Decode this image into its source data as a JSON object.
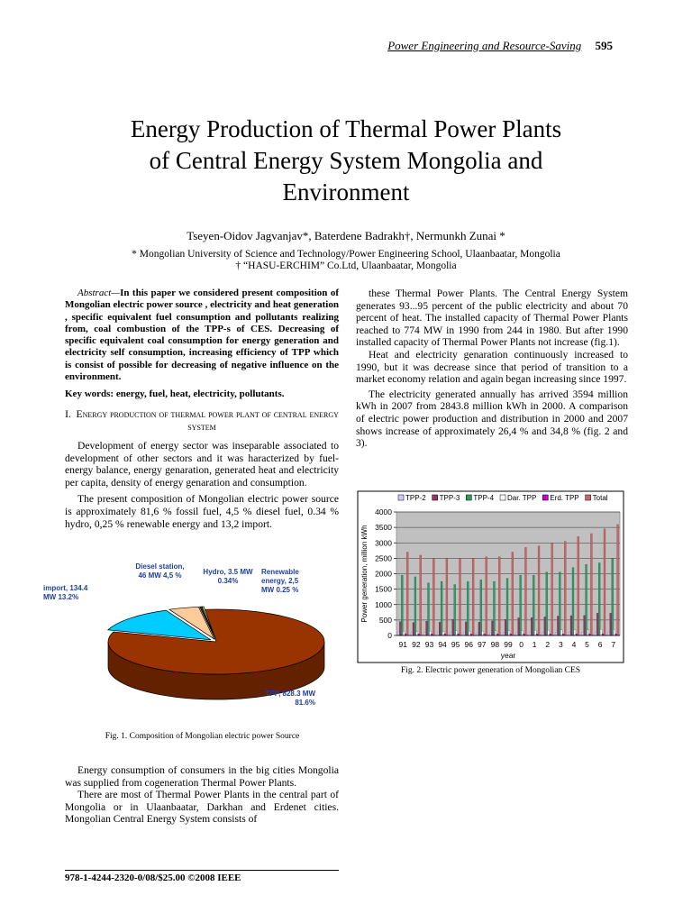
{
  "header": {
    "journal": "Power Engineering and Resource-Saving",
    "page": "595"
  },
  "title": [
    "Energy Production of Thermal Power Plants",
    "of Central Energy System  Mongolia and",
    "Environment"
  ],
  "authors": "Tseyen-Oidov Jagvanjav*, Baterdene Badrakh†, Nermunkh Zunai *",
  "affiliations": [
    "* Mongolian University of  Science and Technology/Power Engineering School, Ulaanbaatar, Mongolia",
    "† “HASU-ERCHIM” Co.Ltd, Ulaanbaatar, Mongolia"
  ],
  "abstract": {
    "label": "Abstract—",
    "text": "In this paper we considered present composition of Mongolian electric power source , electricity and heat generation , specific equivalent fuel consumption and pollutants realizing from, coal combustion of the TPP-s of CES. Decreasing of specific equivalent coal consumption for energy generation and electricity self consumption, increasing efficiency of TPP which is consist of possible for decreasing of negative influence on the environment."
  },
  "keywords": {
    "label": "Key words:",
    "text": "energy, fuel, heat, electricity, pollutants."
  },
  "section": {
    "number": "I.",
    "title": "Energy production of thermal power plant of central energy system"
  },
  "left_paragraphs": [
    "Development of energy sector was inseparable associated to development of other sectors and it was haracterized by fuel-energy balance, energy genaration, generated heat and electricity per capita, density of energy genaration and consumption.",
    "The present composition of Mongolian electric power source is approximately 81,6 % fossil fuel, 4,5 % diesel fuel, 0.34 % hydro, 0,25 % renewable energy and 13,2 import.",
    "Energy consumption of consumers in the big cities Mongolia was supplied from cogeneration Thermal Power Plants.",
    "There are most of Thermal Power Plants in the central part of Mongolia or in Ulaanbaatar, Darkhan and Erdenet cities. Mongolian Central Energy System consists of"
  ],
  "right_paragraphs": [
    "these Thermal Power Plants. The Central Energy System generates 93...95 percent of the public electricity and about 70 percent of heat.  The installed capacity of Thermal Power Plants reached to 774 MW in 1990 from 244 in 1980. But after 1990  installed capacity of Thermal Power Plants not increase (fig.1).",
    "Heat and electricity genaration continuously increased to 1990, but it was decrease  since that period of transition to a market economy relation and again began increasing since 1997.",
    "The electricity generated annually has arrived 3594 million kWh in 2007 from 2843.8 million kWh in 2000. A comparison of electric power production and distribution in 2000 and 2007 shows increase of approximately 26,4 % and 34,8 % (fig. 2 and 3)."
  ],
  "figure_captions": [
    "Fig. 1. Composition of Mongolian electric power Source",
    "Fig. 2. Electric power generation of Mongolian CES"
  ],
  "footer": "978-1-4244-2320-0/08/$25.00 ©2008 IEEE",
  "chart_data": [
    {
      "type": "pie",
      "categories": [
        "TPP,",
        "import,",
        "Diesel station,",
        "Hydro,",
        "Renewable energy,"
      ],
      "values": [
        81.6,
        13.2,
        4.5,
        0.34,
        0.25
      ],
      "value_labels": [
        "828.3 MW 81.6%",
        "134.4 MW 13.2%",
        "46 MW 4,5 %",
        "3.5 MW 0.34%",
        "2,5 MW 0.25 %"
      ],
      "colors": [
        "#993300",
        "#00ccff",
        "#ffcc99",
        "#333333",
        "#ffff66"
      ]
    },
    {
      "type": "bar",
      "xlabel": "year",
      "ylabel": "Power generation, million kWh",
      "categories": [
        "91",
        "92",
        "93",
        "94",
        "95",
        "96",
        "97",
        "98",
        "99",
        "0",
        "1",
        "2",
        "3",
        "4",
        "5",
        "6",
        "7"
      ],
      "series": [
        {
          "name": "TPP-2",
          "color": "#ccccff",
          "values": [
            120,
            110,
            100,
            100,
            90,
            90,
            90,
            90,
            90,
            90,
            100,
            100,
            100,
            110,
            110,
            110,
            110
          ]
        },
        {
          "name": "TPP-3",
          "color": "#993366",
          "values": [
            450,
            420,
            460,
            430,
            520,
            440,
            430,
            470,
            520,
            570,
            580,
            600,
            630,
            640,
            650,
            720,
            720
          ]
        },
        {
          "name": "TPP-4",
          "color": "#339966",
          "values": [
            1950,
            1900,
            1700,
            1750,
            1650,
            1750,
            1800,
            1750,
            1850,
            1950,
            1950,
            2050,
            2050,
            2200,
            2300,
            2350,
            2500
          ]
        },
        {
          "name": "Dar. TPP",
          "color": "#ffffff",
          "values": [
            130,
            120,
            140,
            130,
            150,
            140,
            140,
            150,
            150,
            160,
            170,
            170,
            180,
            180,
            180,
            200,
            200
          ]
        },
        {
          "name": "Erd. TPP",
          "color": "#cc00cc",
          "values": [
            50,
            50,
            50,
            50,
            50,
            50,
            50,
            50,
            50,
            50,
            50,
            50,
            50,
            50,
            50,
            50,
            50
          ]
        },
        {
          "name": "Total",
          "color": "#cc6666",
          "values": [
            2700,
            2600,
            2500,
            2500,
            2500,
            2500,
            2550,
            2550,
            2700,
            2850,
            2900,
            3000,
            3050,
            3200,
            3300,
            3450,
            3594
          ]
        }
      ],
      "ylim": [
        0,
        4000
      ],
      "yticks": [
        0,
        500,
        1000,
        1500,
        2000,
        2500,
        3000,
        3500,
        4000
      ],
      "grid": true,
      "legend": "top"
    }
  ]
}
